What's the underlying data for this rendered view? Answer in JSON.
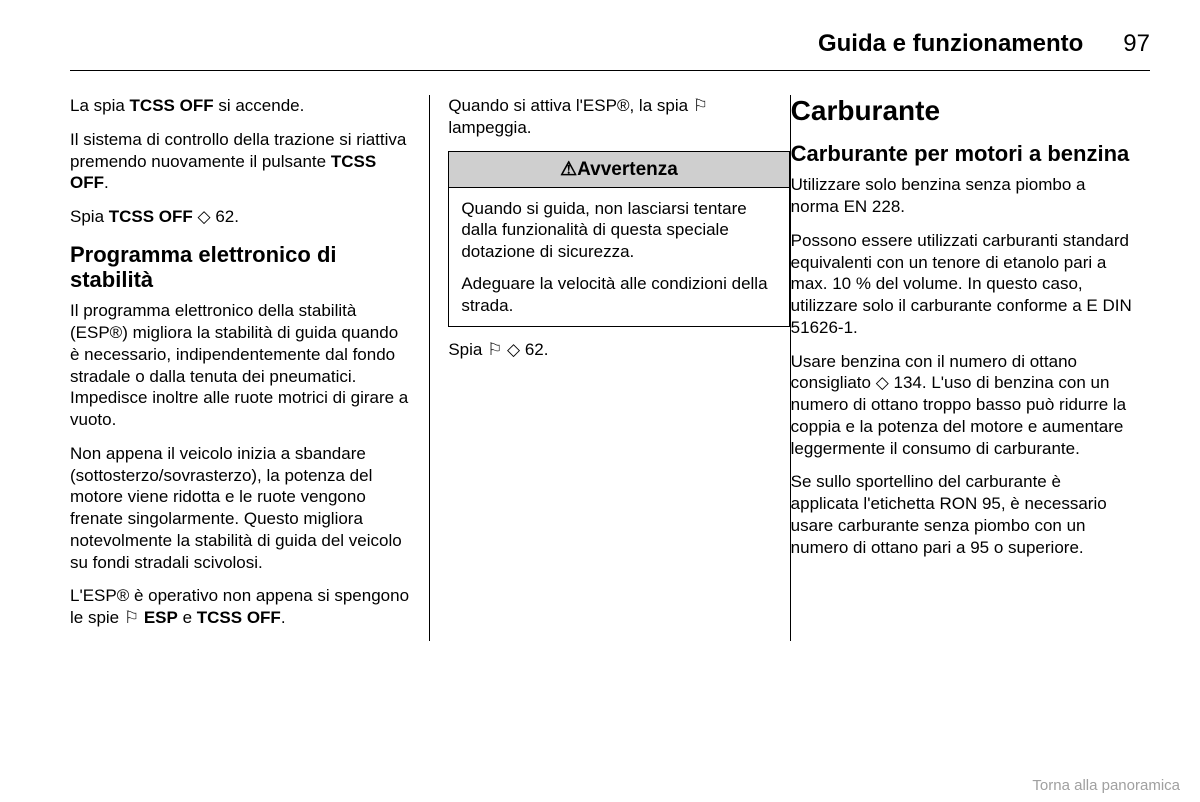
{
  "header": {
    "section": "Guida e funzionamento",
    "page": "97"
  },
  "col1": {
    "p1a": "La spia ",
    "p1b": "TCSS OFF",
    "p1c": " si accende.",
    "p2a": "Il sistema di controllo della trazione si riattiva premendo nuovamente il pul­sante ",
    "p2b": "TCSS OFF",
    "p2c": ".",
    "p3a": "Spia ",
    "p3b": "TCSS OFF",
    "p3c": " ◇ 62.",
    "h1": "Programma elettronico di stabilità",
    "p4": "Il programma elettronico della stabi­lità (ESP®) migliora la stabilità di guida quando è necessario, indipen­dentemente dal fondo stradale o dalla tenuta dei pneumatici. Impedisce inoltre alle ruote motrici di girare a vuoto.",
    "p5": "Non appena il veicolo inizia a sban­dare (sottosterzo/sovrasterzo), la po­tenza del motore viene ridotta e le ruote vengono frenate singolarmente. Questo migliora notevolmente la sta­bilità di guida del veicolo su fondi stra­dali scivolosi.",
    "p6a": "L'ESP® è operativo non appena si spengono le spie ⚐ ",
    "p6b": "ESP",
    "p6c": " e ",
    "p6d": "TCSS OFF",
    "p6e": "."
  },
  "col2": {
    "p1": "Quando si attiva l'ESP®, la spia ⚐ lampeggia.",
    "warn_title": "⚠Avvertenza",
    "w1": "Quando si guida, non lasciarsi ten­tare dalla funzionalità di questa speciale dotazione di sicurezza.",
    "w2": "Adeguare la velocità alle condi­zioni della strada.",
    "p2": "Spia ⚐ ◇ 62."
  },
  "col3": {
    "h1": "Carburante",
    "h2": "Carburante per motori a benzina",
    "p1": "Utilizzare solo benzina senza piombo a norma EN 228.",
    "p2": "Possono essere utilizzati carburanti standard equivalenti con un tenore di etanolo pari a max. 10 % del volume. In questo caso, utilizzare solo il car­burante conforme a E DIN 51626-1.",
    "p3": "Usare benzina con il numero di ottano consigliato ◇ 134. L'uso di benzina con un numero di ottano troppo basso può ridurre la coppia e la potenza del motore e aumentare leggermente il consumo di carburante.",
    "p4": "Se sullo sportellino del carburante è applicata l'etichetta RON 95, è ne­cessario usare carburante senza piombo con un numero di ottano pari a 95 o superiore."
  },
  "footer": "Torna alla panoramica"
}
